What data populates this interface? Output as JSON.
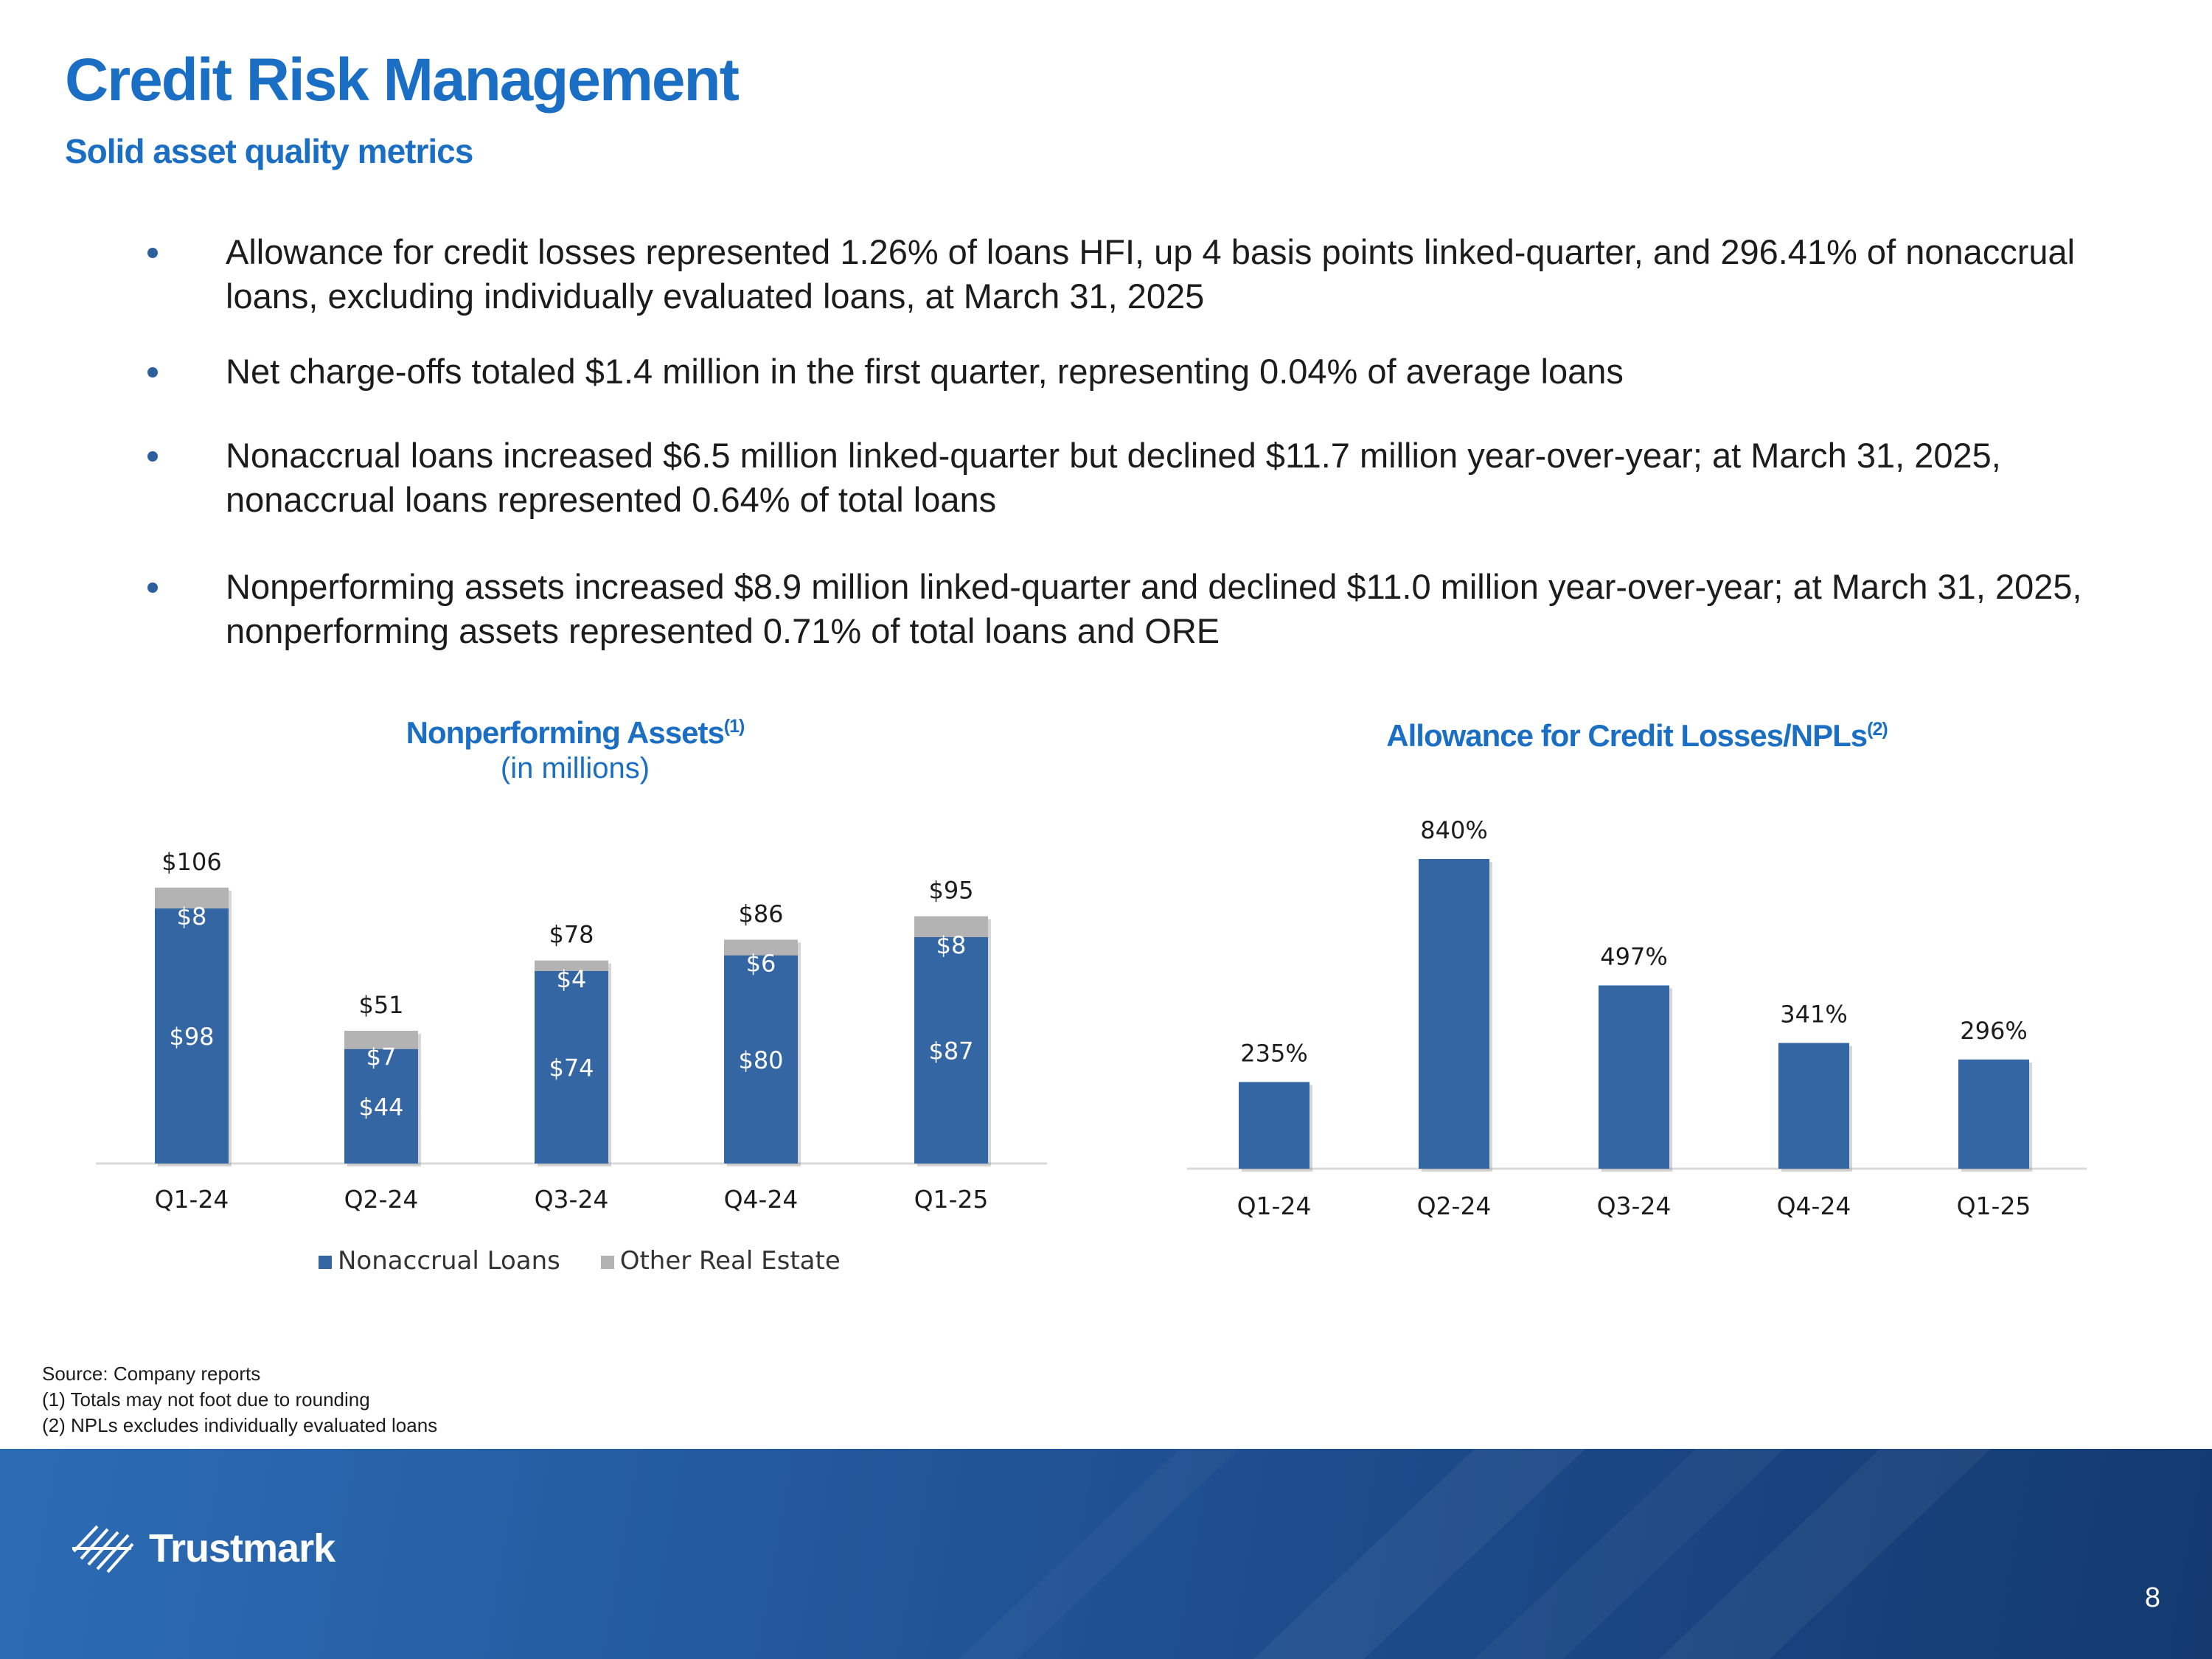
{
  "title": "Credit Risk Management",
  "subtitle": "Solid asset quality metrics",
  "bullets": [
    "Allowance for credit losses represented 1.26% of loans HFI, up 4 basis points linked-quarter, and 296.41% of nonaccrual loans, excluding individually evaluated loans, at March 31, 2025",
    "Net charge-offs totaled $1.4 million in the first quarter, representing 0.04% of average loans",
    "Nonaccrual loans increased $6.5 million linked-quarter but declined $11.7 million year-over-year; at March 31, 2025, nonaccrual loans represented 0.64% of total loans",
    "Nonperforming assets increased $8.9 million linked-quarter and declined $11.0 million year-over-year; at March 31, 2025, nonperforming assets represented 0.71% of total loans and ORE"
  ],
  "colors": {
    "accent": "#1a6fc4",
    "bar_blue": "#3366a3",
    "bar_gray": "#b3b3b3",
    "footer": "#1e4e8f"
  },
  "chart_data": [
    {
      "type": "bar",
      "stacked": true,
      "title": "Nonperforming Assets",
      "title_note": "(1)",
      "subtitle": "(in millions)",
      "categories": [
        "Q1-24",
        "Q2-24",
        "Q3-24",
        "Q4-24",
        "Q1-25"
      ],
      "series": [
        {
          "name": "Nonaccrual Loans",
          "values": [
            98,
            44,
            74,
            80,
            87
          ],
          "labels": [
            "$98",
            "$44",
            "$74",
            "$80",
            "$87"
          ]
        },
        {
          "name": "Other Real Estate",
          "values": [
            8,
            7,
            4,
            6,
            8
          ],
          "labels": [
            "$8",
            "$7",
            "$4",
            "$6",
            "$8"
          ]
        }
      ],
      "totals": [
        106,
        51,
        78,
        86,
        95
      ],
      "total_labels": [
        "$106",
        "$51",
        "$78",
        "$86",
        "$95"
      ],
      "ylim": [
        0,
        115
      ],
      "legend": "bottom"
    },
    {
      "type": "bar",
      "title": "Allowance for Credit Losses/NPLs",
      "title_note": "(2)",
      "categories": [
        "Q1-24",
        "Q2-24",
        "Q3-24",
        "Q4-24",
        "Q1-25"
      ],
      "values": [
        235,
        840,
        497,
        341,
        296
      ],
      "labels": [
        "235%",
        "840%",
        "497%",
        "341%",
        "296%"
      ],
      "ylim": [
        0,
        900
      ]
    }
  ],
  "notes": [
    "Source: Company reports",
    "(1) Totals may not foot due to rounding",
    "(2) NPLs excludes individually evaluated loans"
  ],
  "footer": {
    "logo_text": "Trustmark",
    "page_number": "8"
  }
}
